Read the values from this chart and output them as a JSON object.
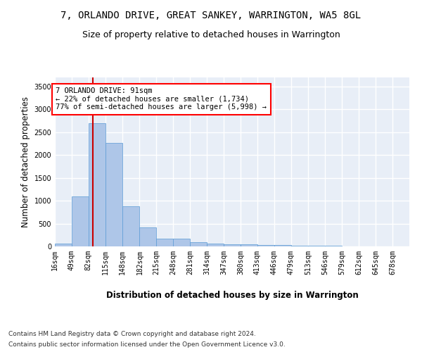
{
  "title": "7, ORLANDO DRIVE, GREAT SANKEY, WARRINGTON, WA5 8GL",
  "subtitle": "Size of property relative to detached houses in Warrington",
  "xlabel": "Distribution of detached houses by size in Warrington",
  "ylabel": "Number of detached properties",
  "footer1": "Contains HM Land Registry data © Crown copyright and database right 2024.",
  "footer2": "Contains public sector information licensed under the Open Government Licence v3.0.",
  "annotation_line1": "7 ORLANDO DRIVE: 91sqm",
  "annotation_line2": "← 22% of detached houses are smaller (1,734)",
  "annotation_line3": "77% of semi-detached houses are larger (5,998) →",
  "bar_color": "#aec6e8",
  "bar_edge_color": "#5b9bd5",
  "vline_color": "#cc0000",
  "vline_x": 91,
  "categories": [
    "16sqm",
    "49sqm",
    "82sqm",
    "115sqm",
    "148sqm",
    "182sqm",
    "215sqm",
    "248sqm",
    "281sqm",
    "314sqm",
    "347sqm",
    "380sqm",
    "413sqm",
    "446sqm",
    "479sqm",
    "513sqm",
    "546sqm",
    "579sqm",
    "612sqm",
    "645sqm",
    "678sqm"
  ],
  "bin_edges": [
    16,
    49,
    82,
    115,
    148,
    182,
    215,
    248,
    281,
    314,
    347,
    380,
    413,
    446,
    479,
    513,
    546,
    579,
    612,
    645,
    678,
    711
  ],
  "values": [
    60,
    1100,
    2700,
    2270,
    875,
    410,
    175,
    175,
    90,
    60,
    50,
    50,
    35,
    25,
    15,
    10,
    8,
    5,
    3,
    2,
    2
  ],
  "ylim": [
    0,
    3700
  ],
  "yticks": [
    0,
    500,
    1000,
    1500,
    2000,
    2500,
    3000,
    3500
  ],
  "background_color": "#e8eef7",
  "grid_color": "#ffffff",
  "title_fontsize": 10,
  "subtitle_fontsize": 9,
  "axis_label_fontsize": 8.5,
  "tick_fontsize": 7,
  "annotation_fontsize": 7.5,
  "footer_fontsize": 6.5
}
